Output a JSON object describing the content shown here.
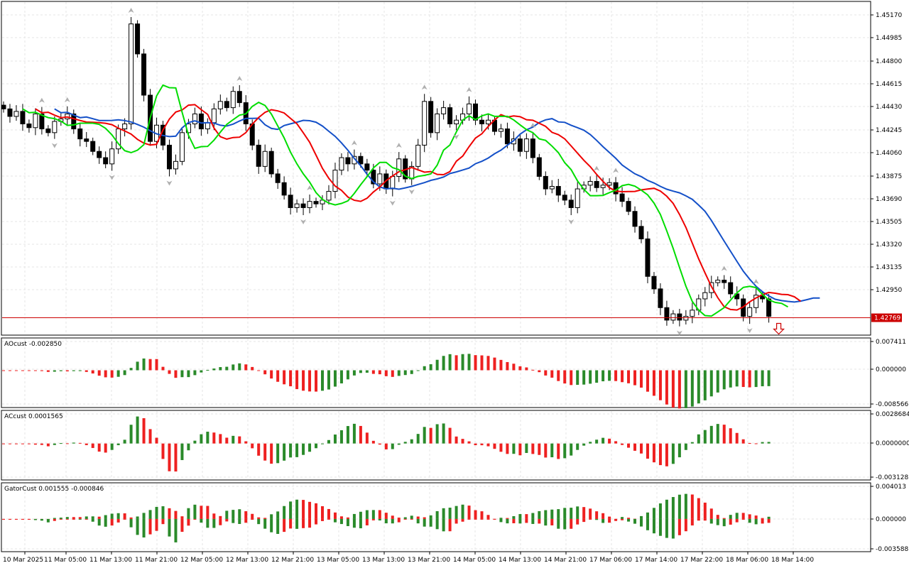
{
  "colors": {
    "bull": "#ffffff",
    "bear": "#000000",
    "ma_fast": "#00dd00",
    "ma_mid": "#ee0000",
    "ma_slow": "#1450c8",
    "hist_up": "#2a8a2a",
    "hist_down": "#ee2020",
    "price_line": "#cc0000",
    "grid": "#e6e6e6",
    "fractal": "#b0b0b0"
  },
  "chart_data": [
    {
      "type": "candlestick",
      "ylim": [
        1.4263,
        1.453
      ],
      "y_ticks": [
        "1.45170",
        "1.44985",
        "1.44800",
        "1.44615",
        "1.44430",
        "1.44245",
        "1.44060",
        "1.43875",
        "1.43690",
        "1.43505",
        "1.43320",
        "1.43135",
        "1.42950"
      ],
      "current_price": "1.42769",
      "x_ticks": [
        "10 Mar 2025",
        "11 Mar 05:00",
        "11 Mar 13:00",
        "11 Mar 21:00",
        "12 Mar 05:00",
        "12 Mar 13:00",
        "12 Mar 21:00",
        "13 Mar 05:00",
        "13 Mar 13:00",
        "13 Mar 21:00",
        "14 Mar 05:00",
        "14 Mar 13:00",
        "14 Mar 21:00",
        "17 Mar 06:00",
        "17 Mar 14:00",
        "17 Mar 22:00",
        "18 Mar 06:00",
        "18 Mar 14:00"
      ],
      "close": [
        1.4444,
        1.4438,
        1.4442,
        1.4432,
        1.4429,
        1.444,
        1.4428,
        1.4425,
        1.4434,
        1.4436,
        1.444,
        1.4428,
        1.442,
        1.4418,
        1.441,
        1.4405,
        1.44,
        1.4412,
        1.4428,
        1.4432,
        1.4512,
        1.4488,
        1.4455,
        1.4418,
        1.4431,
        1.4415,
        1.4396,
        1.4402,
        1.4425,
        1.4432,
        1.444,
        1.4428,
        1.4433,
        1.4444,
        1.445,
        1.4445,
        1.4458,
        1.4449,
        1.4432,
        1.4415,
        1.4398,
        1.441,
        1.4392,
        1.4385,
        1.4375,
        1.4365,
        1.4368,
        1.4365,
        1.437,
        1.4368,
        1.4371,
        1.4378,
        1.4395,
        1.4405,
        1.44,
        1.4406,
        1.44,
        1.4395,
        1.4384,
        1.4392,
        1.438,
        1.439,
        1.4404,
        1.4388,
        1.4398,
        1.4415,
        1.445,
        1.4425,
        1.444,
        1.4445,
        1.4432,
        1.4435,
        1.444,
        1.4448,
        1.4435,
        1.4432,
        1.4435,
        1.4426,
        1.4428,
        1.4416,
        1.442,
        1.441,
        1.442,
        1.4405,
        1.439,
        1.438,
        1.4382,
        1.4375,
        1.4371,
        1.4365,
        1.438,
        1.4383,
        1.4386,
        1.4381,
        1.4383,
        1.4385,
        1.4376,
        1.437,
        1.4362,
        1.435,
        1.434,
        1.431,
        1.43,
        1.4285,
        1.4275,
        1.428,
        1.4275,
        1.4278,
        1.4283,
        1.4292,
        1.4297,
        1.4305,
        1.4307,
        1.4305,
        1.4296,
        1.4292,
        1.4278,
        1.4285,
        1.4295,
        1.4292,
        1.4278
      ]
    },
    {
      "type": "bar",
      "title": "AOcust -0.002850",
      "ylim": [
        -0.009,
        0.0078
      ],
      "y_ticks": [
        "0.007411",
        "0.000000",
        "-0.008566"
      ]
    },
    {
      "type": "bar",
      "title": "ACcust 0.0001565",
      "ylim": [
        -0.0033,
        0.003
      ],
      "y_ticks": [
        "0.0028684",
        "0.0000000",
        "-0.0031283"
      ]
    },
    {
      "type": "bar",
      "title": "GatorCust 0.001555 -0.000846",
      "ylim": [
        -0.0038,
        0.0042
      ],
      "y_ticks": [
        "0.004013",
        "0.000000",
        "-0.003588"
      ]
    }
  ]
}
